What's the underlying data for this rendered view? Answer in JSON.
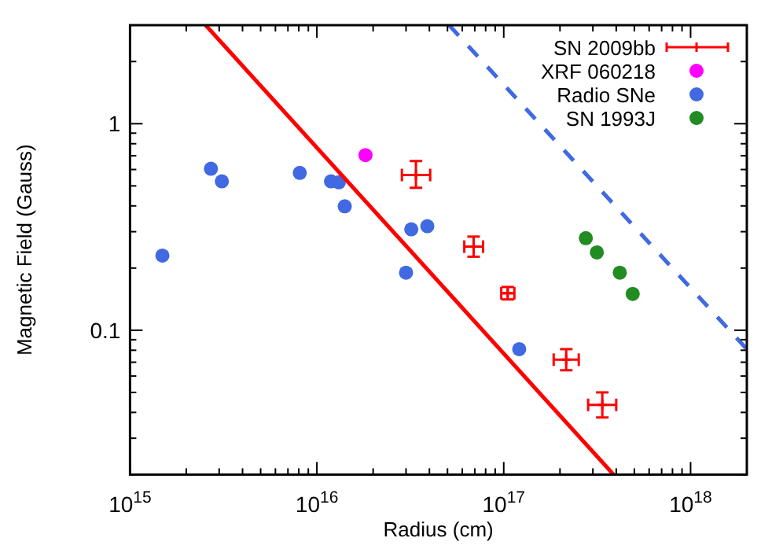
{
  "chart_data": {
    "type": "scatter",
    "xlabel": "Radius (cm)",
    "ylabel": "Magnetic Field (Gauss)",
    "log": "xy",
    "legend": "top right",
    "xlim": [
      1000000000000000.0,
      2e+18
    ],
    "ylim": [
      0.02,
      3
    ],
    "xticks": [
      {
        "value": 1000000000000000.0,
        "label": "10$^{15}$"
      },
      {
        "value": 1e+16,
        "label": "10$^{16}$"
      },
      {
        "value": 1e+17,
        "label": "10$^{17}$"
      },
      {
        "value": 1e+18,
        "label": "10$^{18}$"
      }
    ],
    "yticks": [
      {
        "value": 0.1,
        "label": "0.1"
      },
      1
    ],
    "series": [
      {
        "name": "SN 2009bb",
        "marker": "cross",
        "color": "#ff0000",
        "x": [
          3.39e+16,
          6.9e+16,
          1.05e+17,
          2.16e+17,
          3.37e+17
        ],
        "values": [
          0.565,
          0.254,
          0.151,
          0.072,
          0.0435
        ],
        "errors": [
          [
            0.49,
            0.66
          ],
          [
            0.227,
            0.284
          ],
          [
            0.141,
            0.162
          ],
          [
            0.064,
            0.081
          ],
          [
            0.0378,
            0.05
          ]
        ],
        "xerrors": [
          [
            2.85e+16,
            4.04e+16
          ],
          [
            6.15e+16,
            7.75e+16
          ],
          [
            9.7e+16,
            1.14e+17
          ],
          [
            1.85e+17,
            2.52e+17
          ],
          [
            2.83e+17,
            4e+17
          ]
        ]
      },
      {
        "name": "XRF 060218",
        "marker": "circle",
        "color": "#ff00ff",
        "x": [
          1.82e+16
        ],
        "values": [
          0.705
        ]
      },
      {
        "name": "Radio SNe",
        "marker": "circle",
        "color": "#4169e1",
        "x": [
          1490000000000000.0,
          2710000000000000.0,
          3100000000000000.0,
          8100000000000000.0,
          1.19e+16,
          1.31e+16,
          1.41e+16,
          3.2e+16,
          3.9e+16,
          3e+16,
          1.21e+17
        ],
        "values": [
          0.23,
          0.605,
          0.526,
          0.578,
          0.526,
          0.52,
          0.398,
          0.308,
          0.319,
          0.19,
          0.081
        ]
      },
      {
        "name": "SN 1993J",
        "marker": "circle",
        "color": "#228b22",
        "x": [
          2.75e+17,
          3.15e+17,
          4.18e+17,
          4.9e+17
        ],
        "values": [
          0.279,
          0.238,
          0.19,
          0.15
        ]
      },
      {
        "type": "line",
        "line_style": "solid",
        "color": "#ff0000",
        "x": [
          2540000000000000.0,
          3.87e+17
        ],
        "values": [
          3,
          0.02
        ]
      },
      {
        "type": "line",
        "line_style": "dashed",
        "color": "#4169e1",
        "x": [
          5.1e+16,
          2e+18
        ],
        "values": [
          3,
          0.081
        ]
      }
    ]
  }
}
